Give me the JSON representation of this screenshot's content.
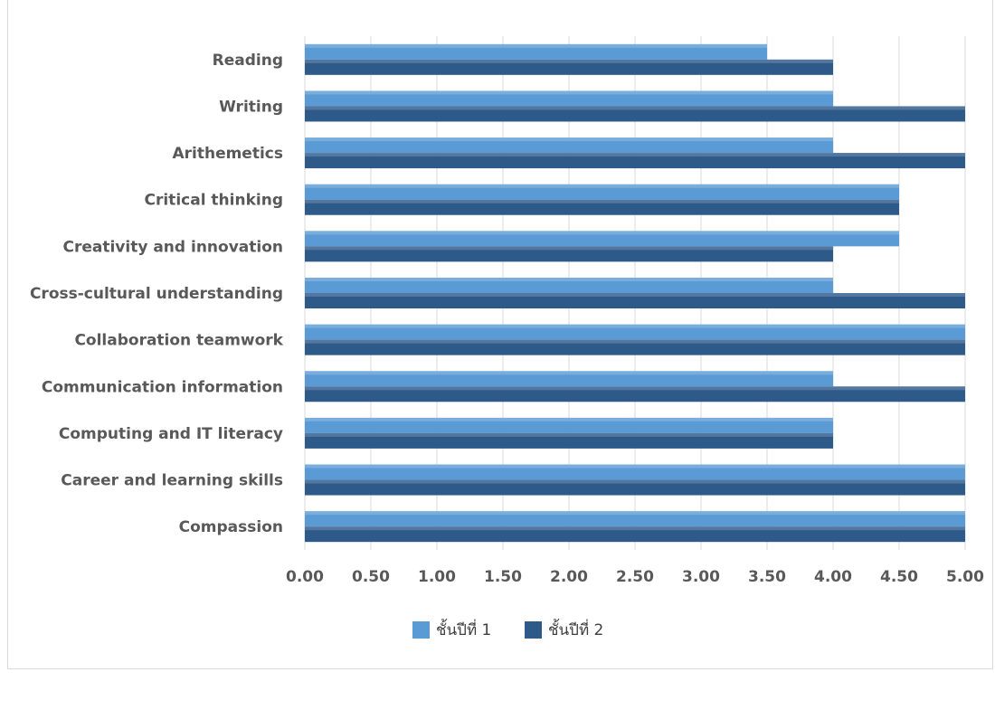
{
  "chart_data": {
    "type": "bar",
    "orientation": "horizontal",
    "title": "",
    "categories": [
      "Compassion",
      "Career and learning skills",
      "Computing and IT literacy",
      "Communication information",
      "Collaboration teamwork",
      "Cross-cultural understanding",
      "Creativity and innovation",
      "Critical thinking ",
      "Arithemetics",
      "Writing",
      "Reading"
    ],
    "series": [
      {
        "name": "ชั้นปีที่ 1",
        "color": "#5b9bd5",
        "values": [
          5.0,
          5.0,
          4.0,
          4.0,
          5.0,
          4.0,
          4.5,
          4.5,
          4.0,
          4.0,
          3.5
        ]
      },
      {
        "name": "ชั้นปีที่ 2",
        "color": "#2e5a8a",
        "values": [
          5.0,
          5.0,
          4.0,
          5.0,
          5.0,
          5.0,
          4.0,
          4.5,
          5.0,
          5.0,
          4.0
        ]
      }
    ],
    "xlim": [
      0,
      5
    ],
    "xticks": [
      "0.00",
      "0.50",
      "1.00",
      "1.50",
      "2.00",
      "2.50",
      "3.00",
      "3.50",
      "4.00",
      "4.50",
      "5.00"
    ],
    "grid": true,
    "legend_position": "bottom"
  }
}
